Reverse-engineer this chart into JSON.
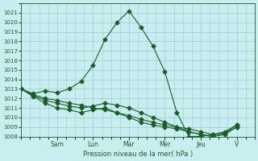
{
  "title": "Pression niveau de la mer( hPa )",
  "bg_color": "#c8eef0",
  "grid_color": "#a0c8d0",
  "line_color": "#1a5c2a",
  "ylim": [
    1008,
    1022
  ],
  "yticks": [
    1008,
    1009,
    1010,
    1011,
    1012,
    1013,
    1014,
    1015,
    1016,
    1017,
    1018,
    1019,
    1020,
    1021
  ],
  "day_labels": [
    "Sam",
    "Lun",
    "Mar",
    "Mer",
    "Jeu",
    "V"
  ],
  "day_positions": [
    2,
    4,
    6,
    8,
    10,
    12
  ],
  "series": [
    [
      1013.0,
      1012.5,
      1012.8,
      1012.6,
      1013.0,
      1013.8,
      1015.5,
      1018.2,
      1020.0,
      1021.2,
      1019.5,
      1017.5,
      1014.8,
      1010.5,
      1008.0,
      1008.0,
      1008.2,
      1008.5,
      1009.2
    ],
    [
      1013.0,
      1012.3,
      1011.8,
      1011.5,
      1011.2,
      1011.0,
      1011.2,
      1011.5,
      1011.3,
      1011.0,
      1010.5,
      1010.0,
      1009.5,
      1009.0,
      1008.5,
      1008.2,
      1008.0,
      1008.2,
      1009.0
    ],
    [
      1013.0,
      1012.2,
      1011.5,
      1011.0,
      1010.8,
      1010.5,
      1010.8,
      1011.0,
      1010.5,
      1010.0,
      1009.5,
      1009.2,
      1009.0,
      1008.8,
      1008.5,
      1008.2,
      1008.0,
      1008.3,
      1009.0
    ],
    [
      1013.0,
      1012.4,
      1012.0,
      1011.8,
      1011.5,
      1011.3,
      1011.0,
      1010.8,
      1010.5,
      1010.2,
      1009.8,
      1009.5,
      1009.2,
      1009.0,
      1008.8,
      1008.5,
      1008.2,
      1008.4,
      1009.2
    ]
  ]
}
